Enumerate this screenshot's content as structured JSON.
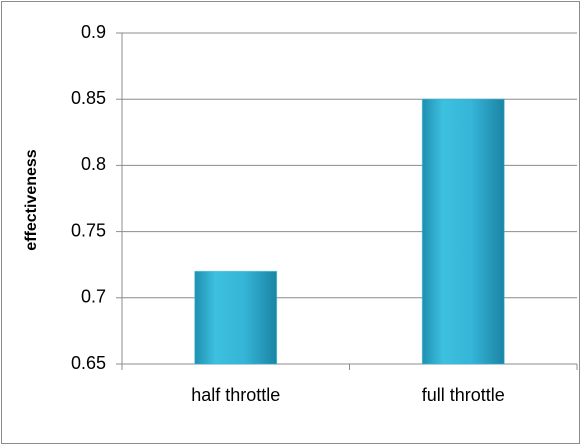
{
  "chart_data": {
    "type": "bar",
    "y_label": "effectiveness",
    "categories": [
      "half throttle",
      "full throttle"
    ],
    "values": [
      0.72,
      0.85
    ],
    "color": "#2fb3d6",
    "ylim": [
      0.65,
      0.9
    ],
    "yticks": [
      0.65,
      0.7,
      0.75,
      0.8,
      0.85,
      0.9
    ],
    "grid": true
  }
}
